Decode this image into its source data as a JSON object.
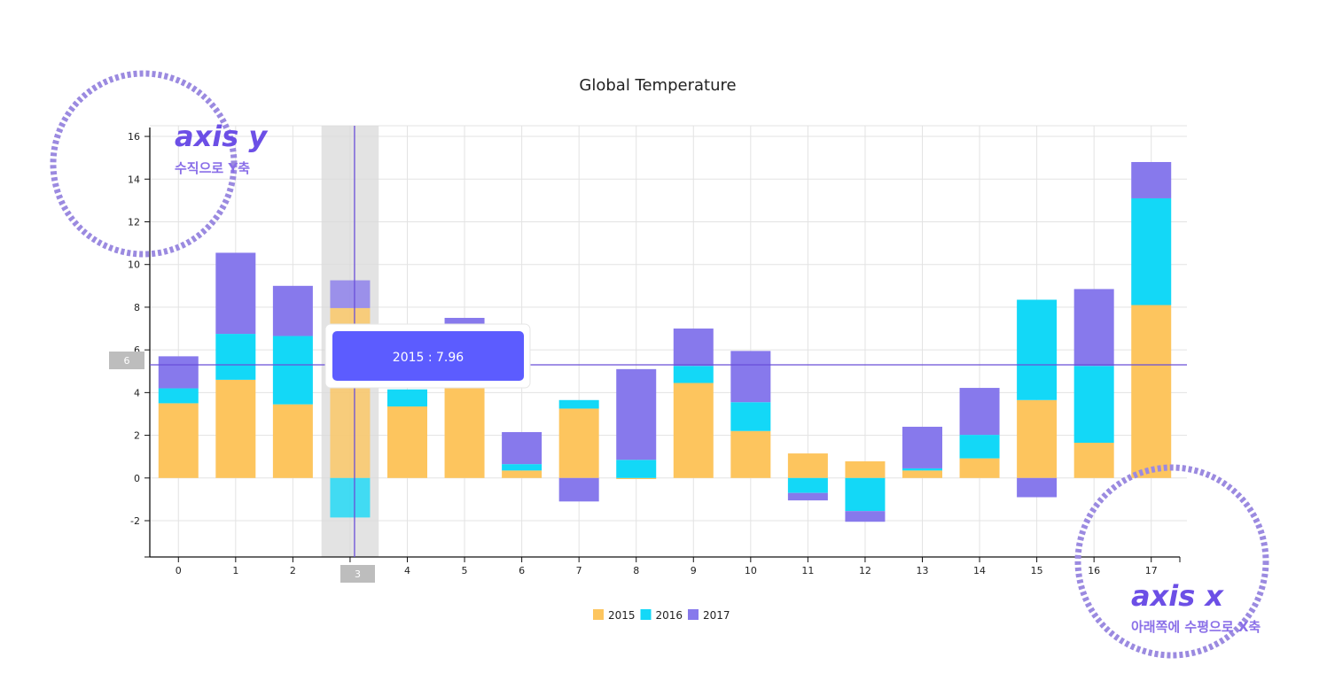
{
  "chart_data": {
    "type": "bar",
    "stacked": true,
    "title": "Global Temperature",
    "categories": [
      "0",
      "1",
      "2",
      "3",
      "4",
      "5",
      "6",
      "7",
      "8",
      "9",
      "10",
      "11",
      "12",
      "13",
      "14",
      "15",
      "16",
      "17"
    ],
    "series": [
      {
        "name": "2015",
        "color": "#fdc55e",
        "values": [
          3.5,
          4.6,
          3.45,
          7.96,
          3.35,
          4.3,
          0.35,
          3.25,
          -0.05,
          4.45,
          2.2,
          1.15,
          0.78,
          0.35,
          0.92,
          3.65,
          1.65,
          8.1
        ]
      },
      {
        "name": "2016",
        "color": "#13d8f7",
        "values": [
          0.7,
          2.15,
          3.2,
          -1.85,
          0.8,
          2.2,
          0.3,
          0.4,
          0.85,
          0.8,
          1.35,
          -0.7,
          -1.55,
          0.1,
          1.1,
          4.7,
          3.6,
          5.0
        ]
      },
      {
        "name": "2017",
        "color": "#8779ec",
        "values": [
          1.5,
          3.8,
          2.35,
          1.3,
          0.0,
          1.0,
          1.5,
          -1.1,
          4.25,
          1.75,
          2.4,
          -0.35,
          -0.5,
          1.95,
          2.2,
          -0.9,
          3.6,
          1.7
        ]
      }
    ],
    "ylim": [
      -3.7,
      16.5
    ],
    "yticks": [
      "-2",
      "0",
      "2",
      "4",
      "6",
      "8",
      "10",
      "12",
      "14",
      "16"
    ],
    "grid": true,
    "legend": "bottom-center",
    "highlight_index": 3,
    "hover_y": 5.3
  },
  "tooltip": {
    "text": "2015 : 7.96",
    "bg": "#5c5cff"
  },
  "guides": {
    "x_label": "3",
    "y_label": "6"
  },
  "callouts": {
    "y": {
      "title": "axis y",
      "sub": "수직으로 Y축"
    },
    "x": {
      "title": "axis x",
      "sub": "아래쪽에 수평으로 X축"
    }
  }
}
